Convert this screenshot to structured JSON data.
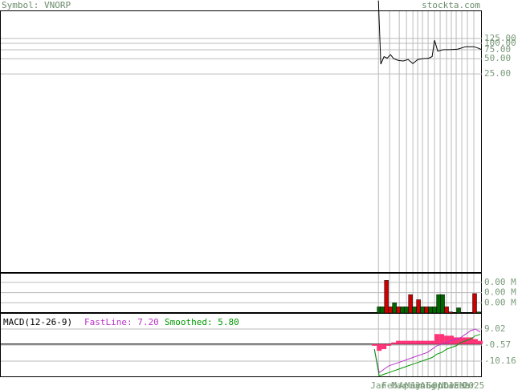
{
  "header": {
    "symbol": "Symbol: VNORP",
    "site": "stockta.com"
  },
  "chart_data": [
    {
      "type": "line",
      "log_scale": true,
      "grid": true,
      "xlim": [
        0,
        300
      ],
      "ylim": [
        0.003,
        430
      ],
      "xticks": [
        {
          "value": 235.5,
          "label": "Jan"
        },
        {
          "value": 242.5,
          "label": "Feb"
        },
        {
          "value": 248.5,
          "label": "Mar"
        },
        {
          "value": 253,
          "label": "Apr"
        },
        {
          "value": 257,
          "label": "May"
        },
        {
          "value": 260,
          "label": "Jun"
        },
        {
          "value": 263,
          "label": "Jul"
        },
        {
          "value": 266.5,
          "label": "Aug"
        },
        {
          "value": 270.5,
          "label": "Sep"
        },
        {
          "value": 274,
          "label": "Oct"
        },
        {
          "value": 278,
          "label": "Nov"
        },
        {
          "value": 281,
          "label": "Dec"
        },
        {
          "value": 284,
          "label": "Jan"
        },
        {
          "value": 287.5,
          "label": "Feb"
        },
        {
          "value": 291,
          "label": "Mar"
        },
        {
          "value": 295,
          "label": "2025"
        }
      ],
      "yticks": [
        {
          "value": 125,
          "label": "125.00"
        },
        {
          "value": 100,
          "label": "100.00"
        },
        {
          "value": 75,
          "label": "75.00"
        },
        {
          "value": 50,
          "label": "50.00"
        },
        {
          "value": 25,
          "label": "25.00"
        }
      ],
      "x": [
        235.5,
        237,
        239,
        241,
        243,
        245,
        248,
        251,
        254,
        257,
        260,
        263,
        267,
        269,
        270.5,
        272.5,
        276,
        280,
        285,
        290,
        295,
        298,
        300
      ],
      "series": [
        {
          "color": "#000000",
          "values": [
            700,
            39,
            55,
            51,
            60,
            50,
            46,
            45,
            48,
            40,
            48,
            50,
            51,
            55,
            115,
            70,
            75,
            75,
            77,
            86,
            86,
            80,
            75
          ]
        }
      ]
    },
    {
      "type": "bar",
      "grid": true,
      "xlim": [
        0,
        300
      ],
      "ylim": [
        0,
        0.00386
      ],
      "yticks": [
        {
          "value": 0.003,
          "label": "0.00 M"
        },
        {
          "value": 0.002,
          "label": "0.00 M"
        },
        {
          "value": 0.001,
          "label": "0.00 M"
        }
      ],
      "x": [
        236,
        238,
        240.5,
        243,
        245.5,
        248,
        250.5,
        253,
        255.5,
        258,
        260.5,
        263,
        265.5,
        268,
        270.5,
        273,
        275.5,
        278,
        280.5,
        285.5,
        295.5,
        298
      ],
      "values": [
        0.0006,
        0.0006,
        0.0032,
        0.0006,
        0.001,
        0.0006,
        0.0006,
        0.0006,
        0.0018,
        0.0006,
        0.0013,
        0.0006,
        0.0006,
        0.0006,
        0.0006,
        0.0018,
        0.0018,
        0.0006,
        0.0001,
        0.0005,
        0.0019,
        0.0001
      ],
      "colors": [
        "#006600",
        "#006600",
        "#cc0000",
        "#cc0000",
        "#006600",
        "#cc0000",
        "#006600",
        "#006600",
        "#cc0000",
        "#006600",
        "#cc0000",
        "#006600",
        "#cc0000",
        "#006600",
        "#006600",
        "#006600",
        "#006600",
        "#cc0000",
        "#cc0000",
        "#006600",
        "#cc0000",
        "#006600"
      ]
    },
    {
      "type": "line",
      "title": "MACD(12-26-9)",
      "grid": true,
      "xlim": [
        0,
        300
      ],
      "ylim": [
        -19.75,
        18.13
      ],
      "yticks": [
        9.02,
        -0.57,
        -10.16
      ],
      "x": [
        233,
        236,
        239,
        242,
        245,
        248,
        251,
        254,
        257,
        260,
        263,
        266,
        269,
        272,
        275,
        278,
        281,
        284,
        287,
        290,
        293,
        296,
        299
      ],
      "series": [
        {
          "type": "bar",
          "color": "#ff3377",
          "values": [
            -1,
            -4,
            -3,
            -1,
            1,
            2,
            2,
            2,
            2,
            2,
            2,
            2,
            2,
            6,
            6,
            5,
            5,
            4,
            4,
            4,
            4,
            3,
            2
          ]
        },
        {
          "name": "FastLine: 7.20",
          "color": "#bb33cc",
          "values": [
            -3,
            -17,
            -15,
            -13,
            -12,
            -11,
            -10,
            -9,
            -8,
            -7,
            -6,
            -5,
            -3,
            -1,
            0,
            1,
            2,
            3,
            4,
            6,
            8,
            9,
            7.2
          ]
        },
        {
          "name": "Smoothed: 5.80",
          "color": "#009900",
          "values": [
            -3,
            -19,
            -18,
            -17,
            -16,
            -15,
            -14,
            -13,
            -12,
            -11,
            -10,
            -9,
            -8,
            -6,
            -5,
            -3,
            -2,
            -1,
            1,
            2,
            3,
            5,
            5.8
          ]
        }
      ]
    }
  ]
}
